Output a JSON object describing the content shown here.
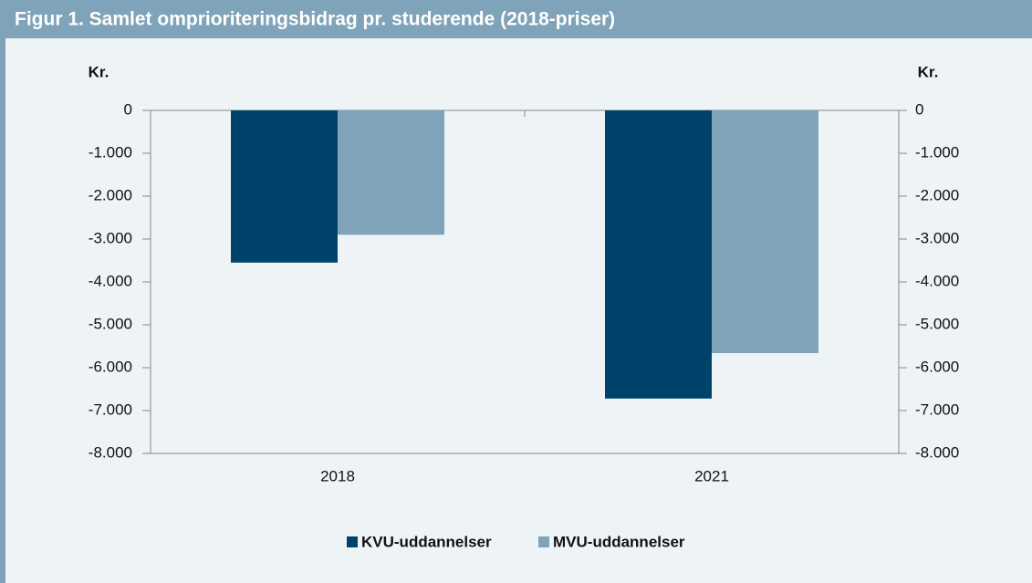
{
  "chart_data": {
    "type": "bar",
    "title": "Figur 1. Samlet omprioriteringsbidrag pr. studerende (2018-priser)",
    "y_label": "Kr.",
    "y2_label": "Kr.",
    "categories": [
      "2018",
      "2021"
    ],
    "series": [
      {
        "name": "KVU-uddannelser",
        "color": "#00436a",
        "values": [
          -3550,
          -6720
        ]
      },
      {
        "name": "MVU-uddannelser",
        "color": "#7fa3b8",
        "values": [
          -2900,
          -5660
        ]
      }
    ],
    "ylim": [
      -8000,
      0
    ],
    "yticks": [
      0,
      {
        "value": -1000,
        "label": "-1.000"
      },
      {
        "value": -2000,
        "label": "-2.000"
      },
      {
        "value": -3000,
        "label": "-3.000"
      },
      {
        "value": -4000,
        "label": "-4.000"
      },
      {
        "value": -5000,
        "label": "-5.000"
      },
      {
        "value": -6000,
        "label": "-6.000"
      },
      {
        "value": -7000,
        "label": "-7.000"
      },
      {
        "value": -8000,
        "label": "-8.000"
      }
    ],
    "y2lim": [
      -8000,
      0
    ],
    "y2ticks": [
      0,
      {
        "value": -1000,
        "label": "-1.000"
      },
      {
        "value": -2000,
        "label": "-2.000"
      },
      {
        "value": -3000,
        "label": "-3.000"
      },
      {
        "value": -4000,
        "label": "-4.000"
      },
      {
        "value": -5000,
        "label": "-5.000"
      },
      {
        "value": -6000,
        "label": "-6.000"
      },
      {
        "value": -7000,
        "label": "-7.000"
      },
      {
        "value": -8000,
        "label": "-8.000"
      }
    ],
    "grid": false,
    "legend": "bottom"
  }
}
